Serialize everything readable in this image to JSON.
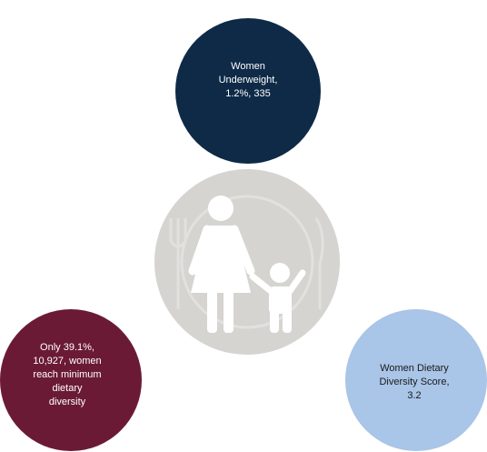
{
  "nodes": [
    {
      "lines": [
        "Women",
        "Underweight,",
        "1.2%, 335"
      ]
    },
    {
      "lines": [
        "Only 39.1%,",
        "10,927, women",
        "reach minimum",
        "dietary",
        "diversity"
      ]
    },
    {
      "lines": [
        "Women Dietary",
        "Diversity Score,",
        "3.2"
      ]
    }
  ]
}
